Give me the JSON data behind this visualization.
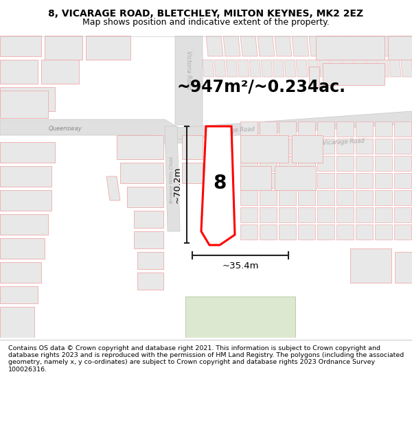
{
  "title_line1": "8, VICARAGE ROAD, BLETCHLEY, MILTON KEYNES, MK2 2EZ",
  "title_line2": "Map shows position and indicative extent of the property.",
  "footer_text": "Contains OS data © Crown copyright and database right 2021. This information is subject to Crown copyright and database rights 2023 and is reproduced with the permission of HM Land Registry. The polygons (including the associated geometry, namely x, y co-ordinates) are subject to Crown copyright and database rights 2023 Ordnance Survey 100026316.",
  "area_text": "~947m²/~0.234ac.",
  "dim_vertical": "~70.2m",
  "dim_horizontal": "~35.4m",
  "map_bg": "#ffffff",
  "road_color": "#e0e0e0",
  "road_edge_color": "#c8c8c8",
  "block_face": "#e8e8e8",
  "block_edge": "#f0aaaa",
  "plot_outline_color": "#ff0000",
  "dim_line_color": "#222222",
  "road_label_color": "#aaaaaa",
  "title_fontsize": 10.0,
  "subtitle_fontsize": 9.0,
  "footer_fontsize": 6.8,
  "area_fontsize": 17,
  "dim_fontsize": 9.5,
  "label_8_fontsize": 20
}
